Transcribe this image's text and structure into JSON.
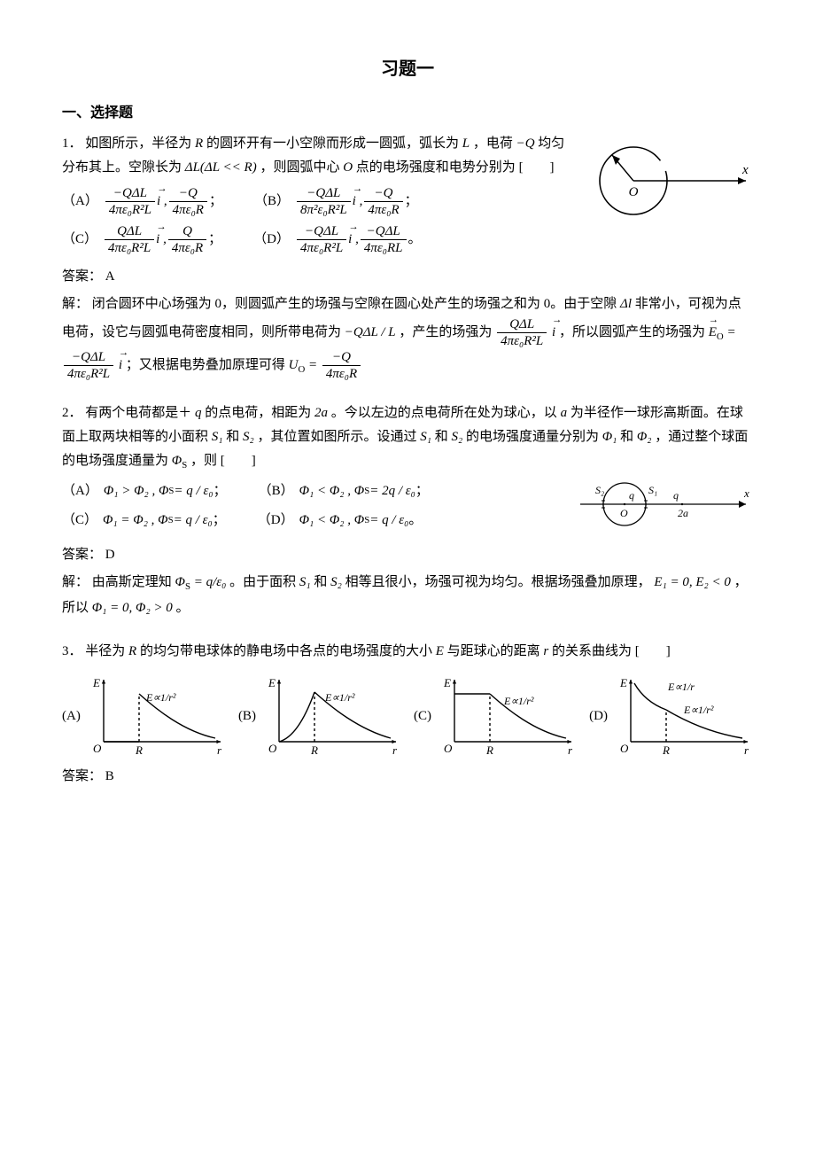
{
  "title": "习题一",
  "section1_head": "一、选择题",
  "q1": {
    "num": "1．",
    "text_a": "如图所示，半径为",
    "R": "R",
    "text_b": "的圆环开有一小空隙而形成一圆弧，弧长为",
    "L": "L",
    "text_c": "，电荷",
    "mQ": "−Q",
    "text_d": "均匀分布其上。空隙长为",
    "dL_cond": "ΔL(ΔL << R)",
    "text_e": "，则圆弧中心",
    "O": "O",
    "text_f": "点的电场强度和电势分别为",
    "blank": "[　　]",
    "optA_label": "（A）",
    "optA_f1_num": "−QΔL",
    "optA_f1_den": "4πε₀R²L",
    "optA_mid": "i ,",
    "optA_f2_num": "−Q",
    "optA_f2_den": "4πε₀R",
    "optA_end": "；",
    "optB_label": "（B）",
    "optB_f1_num": "−QΔL",
    "optB_f1_den": "8π²ε₀R²L",
    "optB_mid": "i ,",
    "optB_f2_num": "−Q",
    "optB_f2_den": "4πε₀R",
    "optB_end": "；",
    "optC_label": "（C）",
    "optC_f1_num": "QΔL",
    "optC_f1_den": "4πε₀R²L",
    "optC_mid": "i ,",
    "optC_f2_num": "Q",
    "optC_f2_den": "4πε₀R",
    "optC_end": "；",
    "optD_label": "（D）",
    "optD_f1_num": "−QΔL",
    "optD_f1_den": "4πε₀R²L",
    "optD_mid": "i ,",
    "optD_f2_num": "−QΔL",
    "optD_f2_den": "4πε₀RL",
    "optD_end": "。",
    "answer_label": "答案：",
    "answer": "A",
    "sol_label": "解：",
    "sol_a": "闭合圆环中心场强为 0，则圆弧产生的场强与空隙在圆心处产生的场强之和为 0。由于空隙",
    "sol_dl": "Δl",
    "sol_b": "非常小，可视为点电荷，设它与圆弧电荷密度相同，则所带电荷为",
    "sol_charge": "−QΔL / L",
    "sol_c": "，产生的场强为",
    "sol_f1_num": "QΔL",
    "sol_f1_den": "4πε₀R²L",
    "sol_vec1": "i",
    "sol_d": "，所以圆弧产生的场强为",
    "sol_Eo": "E",
    "sol_Eo_sub": "O",
    "sol_eq": " = ",
    "sol_f2_num": "−QΔL",
    "sol_f2_den": "4πε₀R²L",
    "sol_vec2": "i",
    "sol_e": "；又根据电势叠加原理可得",
    "sol_Uo": "U",
    "sol_Uo_sub": "O",
    "sol_f3_num": "−Q",
    "sol_f3_den": "4πε₀R",
    "fig_O": "O",
    "fig_x": "x"
  },
  "q2": {
    "num": "2．",
    "text_a": "有两个电荷都是＋",
    "q": "q",
    "text_b": "的点电荷，相距为",
    "two_a": "2a",
    "text_c": "。今以左边的点电荷所在处为球心，以",
    "a": "a",
    "text_d": "为半径作一球形高斯面。在球面上取两块相等的小面积",
    "S1": "S₁",
    "and": "和",
    "S2": "S₂",
    "text_e": "，其位置如图所示。设通过",
    "text_f": "的电场强度通量分别为",
    "Phi1": "Φ₁",
    "Phi2": "Φ₂",
    "text_g": "，通过整个球面的电场强度通量为",
    "PhiS": "Φ",
    "PhiS_sub": "S",
    "text_h": "，则",
    "blank": "[　　]",
    "optA_label": "（A）",
    "optA_t1": "Φ₁ > Φ₂ ,",
    "optA_t2": "Φ",
    "optA_t2sub": "S",
    "optA_t3": " = q / ε₀",
    "optA_end": "；",
    "optB_label": "（B）",
    "optB_t1": "Φ₁ < Φ₂ ,",
    "optB_t3": " = 2q / ε₀",
    "optB_end": "；",
    "optC_label": "（C）",
    "optC_t1": "Φ₁ = Φ₂ ,",
    "optC_t3": " = q / ε₀",
    "optC_end": "；",
    "optD_label": "（D）",
    "optD_t1": "Φ₁ < Φ₂ ,",
    "optD_t3": " = q / ε₀",
    "optD_end": "。",
    "answer_label": "答案：",
    "answer": "D",
    "sol_label": "解：",
    "sol_a": "由高斯定理知",
    "sol_phiS": "Φ",
    "sol_phiS_sub": "S",
    "sol_eq": " = q/ε₀",
    "sol_b": "。由于面积",
    "sol_c": "相等且很小，场强可视为均匀。根据场强叠加原理，",
    "sol_E": "E₁ = 0, E₂ < 0",
    "sol_d": "，所以",
    "sol_Phi": "Φ₁ = 0, Φ₂ > 0",
    "sol_end": "。",
    "fig": {
      "S2_label": "S₂",
      "S1_label": "S₁",
      "q_label": "q",
      "q2_label": "q",
      "O_label": "O",
      "two_a_label": "2a",
      "x_label": "x"
    }
  },
  "q3": {
    "num": "3．",
    "text_a": "半径为",
    "R": "R",
    "text_b": "的均匀带电球体的静电场中各点的电场强度的大小",
    "E": "E",
    "text_c": "与距球心的距离",
    "r": "r",
    "text_d": "的关系曲线为",
    "blank": "[　　]",
    "answer_label": "答案：",
    "answer": "B",
    "labels": {
      "A": "(A)",
      "B": "(B)",
      "C": "(C)",
      "D": "(D)"
    },
    "axis": {
      "E": "E",
      "r": "r",
      "O": "O",
      "R": "R"
    },
    "curve_label": "E∝1/r²",
    "curve_label_D1": "E∝1/r",
    "curve_label_D2": "E∝1/r²",
    "chart_style": {
      "width": 160,
      "height": 96,
      "axis_color": "#000",
      "axis_width": 1.4,
      "dash": "3,3",
      "font_family": "Times New Roman",
      "font_size": 13
    }
  }
}
